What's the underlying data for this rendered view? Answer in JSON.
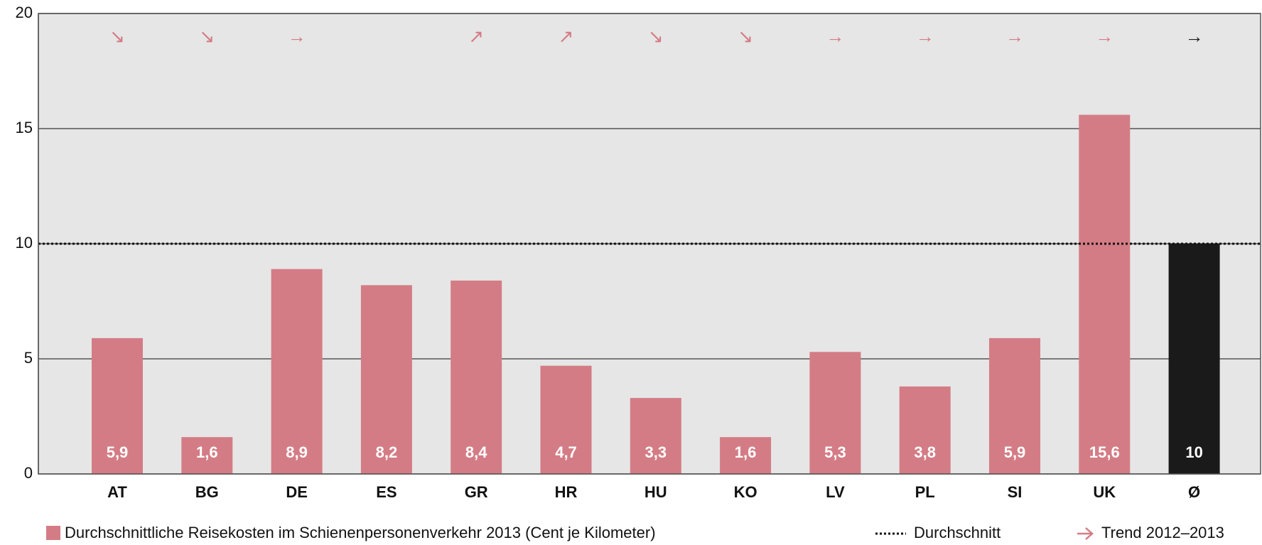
{
  "chart_data": {
    "type": "bar",
    "categories": [
      "AT",
      "BG",
      "DE",
      "ES",
      "GR",
      "HR",
      "HU",
      "KO",
      "LV",
      "PL",
      "SI",
      "UK",
      "Ø"
    ],
    "values": [
      5.9,
      1.6,
      8.9,
      8.2,
      8.4,
      4.7,
      3.3,
      1.6,
      5.3,
      3.8,
      5.9,
      15.6,
      10
    ],
    "value_labels": [
      "5,9",
      "1,6",
      "8,9",
      "8,2",
      "8,4",
      "4,7",
      "3,3",
      "1,6",
      "5,3",
      "3,8",
      "5,9",
      "15,6",
      "10"
    ],
    "colors": [
      "#d47c85",
      "#d47c85",
      "#d47c85",
      "#d47c85",
      "#d47c85",
      "#d47c85",
      "#d47c85",
      "#d47c85",
      "#d47c85",
      "#d47c85",
      "#d47c85",
      "#d47c85",
      "#1a1a1a"
    ],
    "trends": [
      "↘",
      "↘",
      "→",
      null,
      "↗",
      "↗",
      "↘",
      "↘",
      "→",
      "→",
      "→",
      "→",
      "→"
    ],
    "average": 10,
    "ylim": [
      0,
      20
    ],
    "yticks": [
      0,
      5,
      10,
      15,
      20
    ],
    "grid": true,
    "legend": {
      "bars": "Durchschnittliche Reisekosten im Schienenpersonenverkehr 2013  (Cent je Kilometer)",
      "average": "Durchschnitt",
      "trend": "Trend 2012–2013"
    }
  }
}
